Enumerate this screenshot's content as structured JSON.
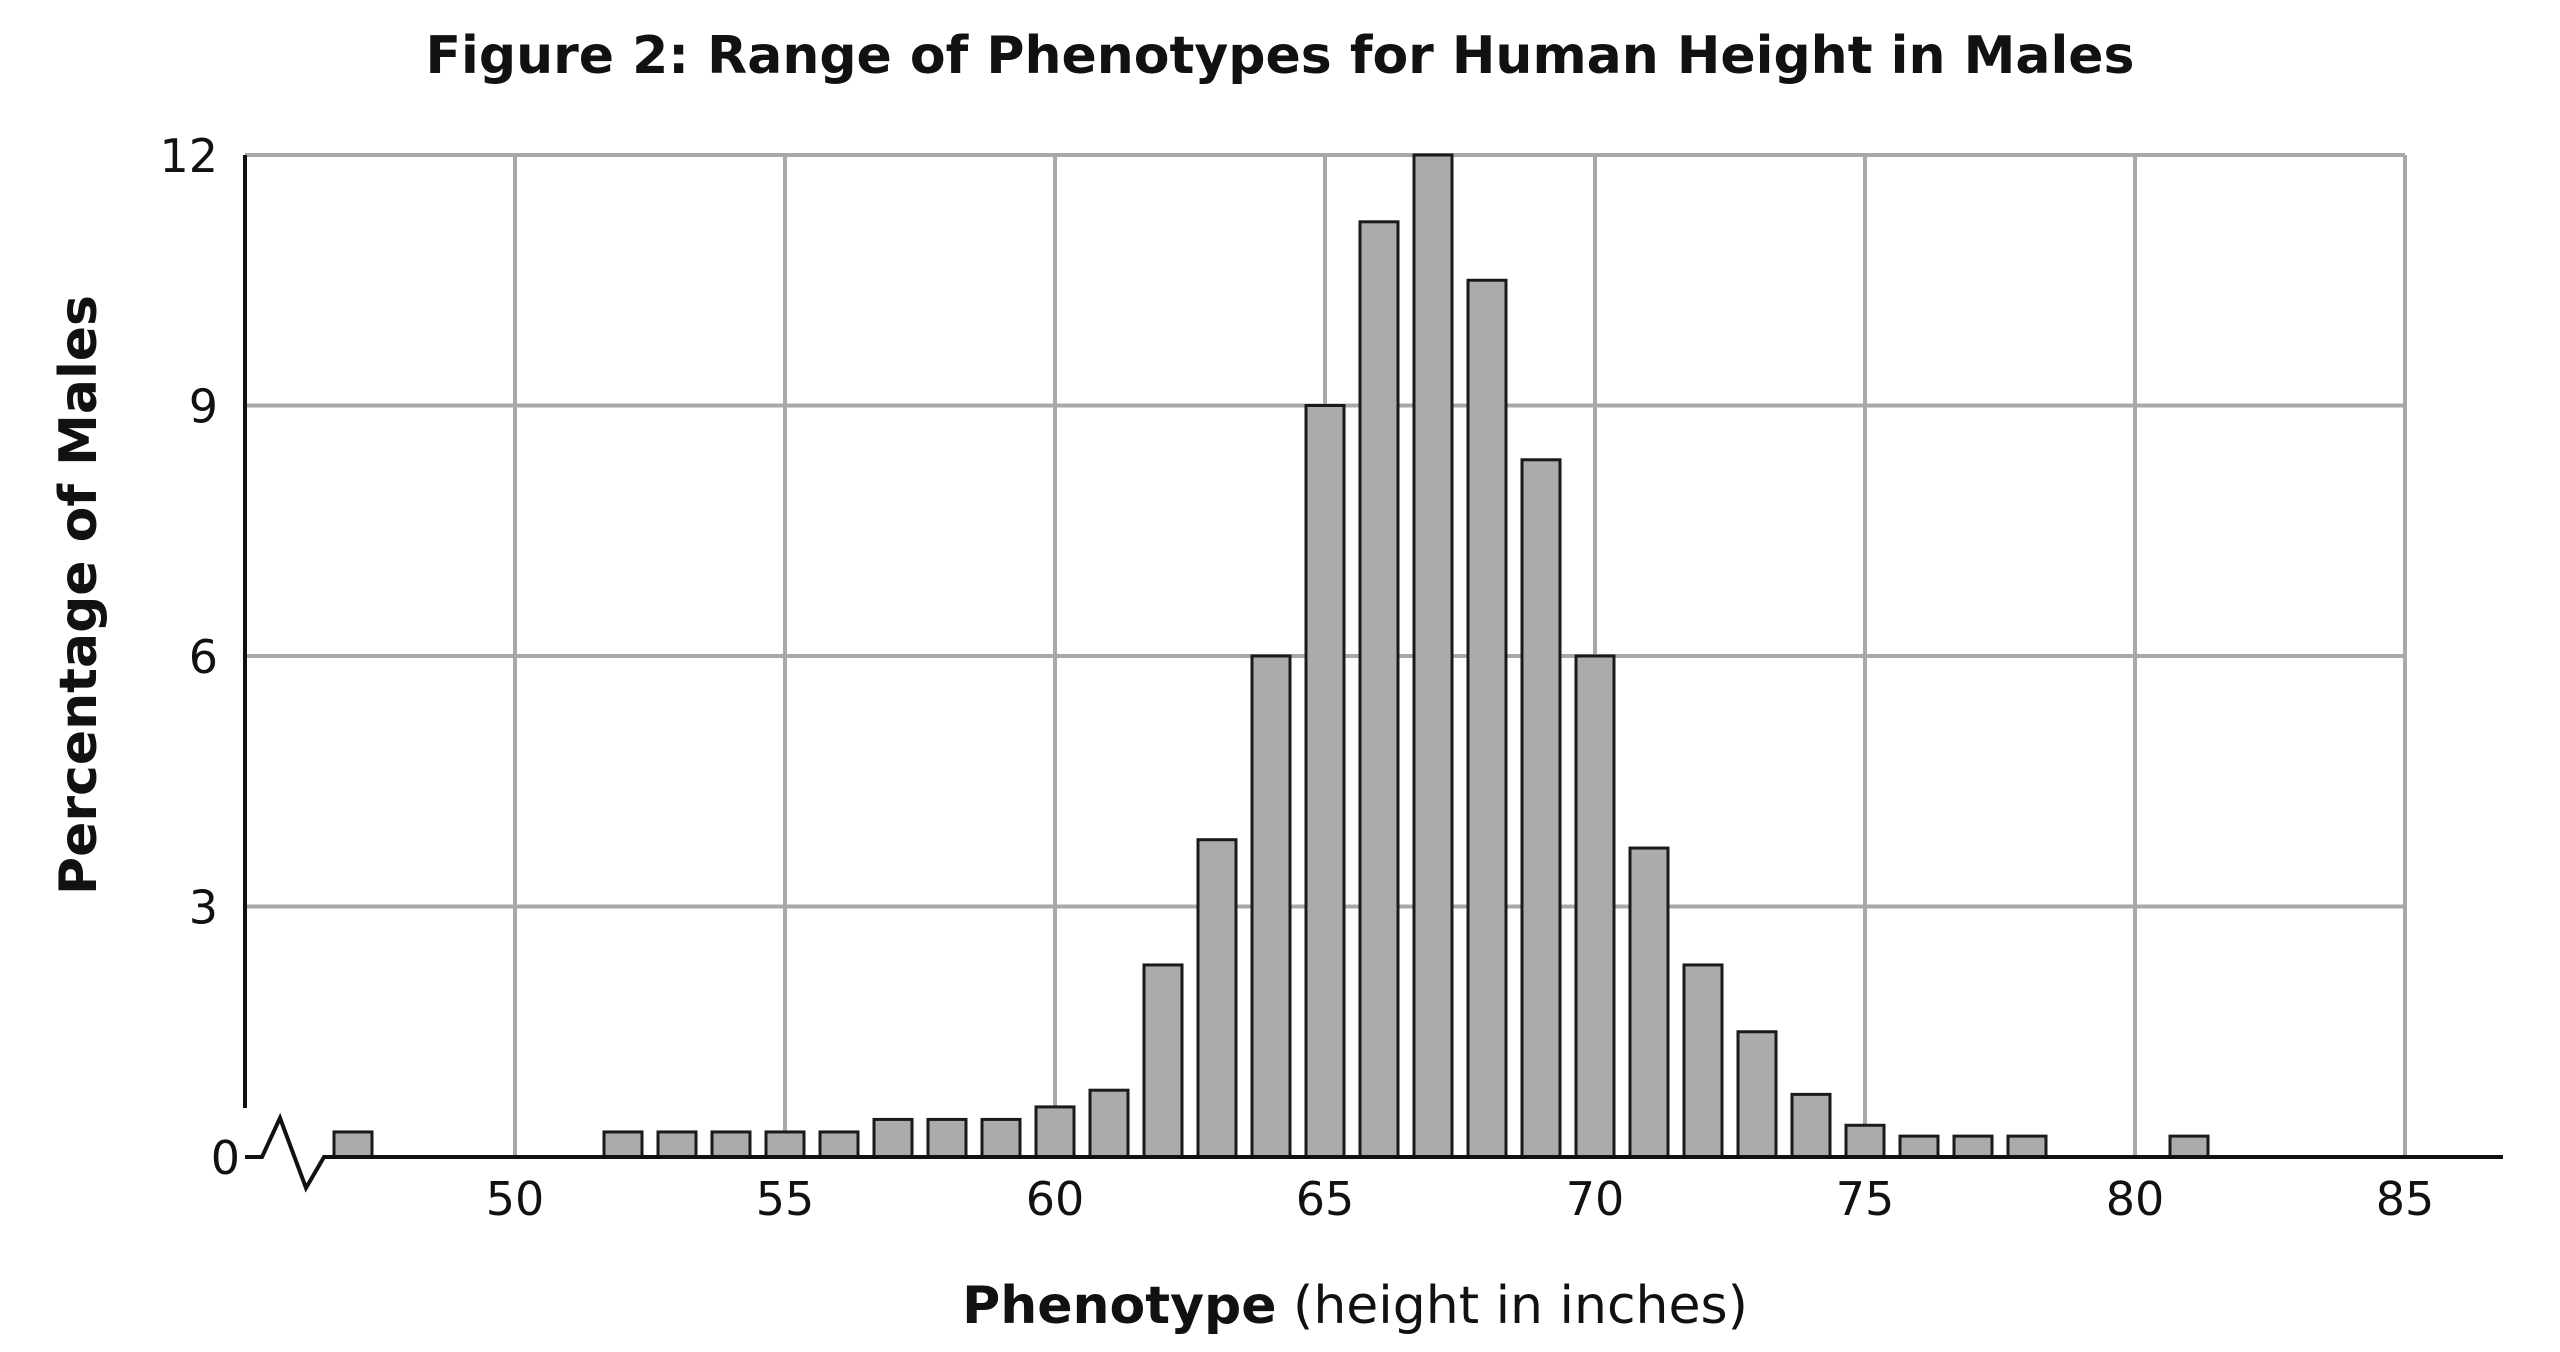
{
  "chart_data": {
    "type": "bar",
    "title": "Figure 2: Range of Phenotypes for Human Height in Males",
    "xlabel_bold": "Phenotype",
    "xlabel_rest": " (height in inches)",
    "ylabel": "Percentage of Males",
    "xlim": [
      45,
      85
    ],
    "ylim": [
      0,
      12
    ],
    "x_ticks": [
      50,
      55,
      60,
      65,
      70,
      75,
      80,
      85
    ],
    "y_ticks": [
      0,
      3,
      6,
      9,
      12
    ],
    "axis_break": "x-axis break between 0 and 50",
    "grid": true,
    "bar_color": "#ababab",
    "bar_edge_color": "#1a1a1a",
    "x": [
      47,
      52,
      53,
      54,
      55,
      56,
      57,
      58,
      59,
      60,
      61,
      62,
      63,
      64,
      65,
      66,
      67,
      68,
      69,
      70,
      71,
      72,
      73,
      74,
      75,
      76,
      77,
      78,
      81
    ],
    "values": [
      0.3,
      0.3,
      0.3,
      0.3,
      0.3,
      0.3,
      0.45,
      0.45,
      0.45,
      0.6,
      0.8,
      2.3,
      3.8,
      6.0,
      9.0,
      11.2,
      12.0,
      10.5,
      8.35,
      6.0,
      3.7,
      2.3,
      1.5,
      0.75,
      0.38,
      0.25,
      0.25,
      0.25,
      0.25
    ]
  }
}
